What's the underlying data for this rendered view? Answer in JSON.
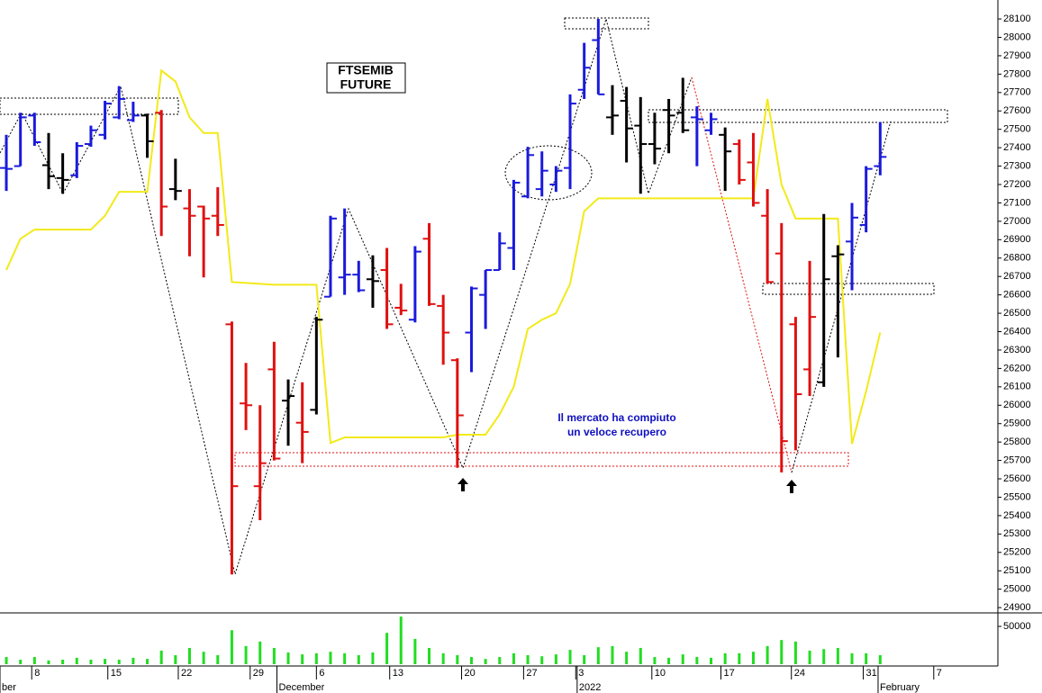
{
  "chart_data": {
    "type": "ohlc",
    "title_lines": [
      "FTSEMIB",
      "FUTURE"
    ],
    "annotation_lines": [
      "Il mercato ha compiuto",
      "un veloce recupero"
    ],
    "xlim": [
      -0.45,
      70.35
    ],
    "xticks": [
      {
        "value": 1.8,
        "label": "8"
      },
      {
        "value": 7.2,
        "label": "15"
      },
      {
        "value": 12.2,
        "label": "22"
      },
      {
        "value": 17.3,
        "label": "29"
      },
      {
        "value": 22.0,
        "label": "6"
      },
      {
        "value": 27.2,
        "label": "13"
      },
      {
        "value": 32.3,
        "label": "20"
      },
      {
        "value": 36.7,
        "label": "27"
      },
      {
        "value": 40.4,
        "label": "3"
      },
      {
        "value": 45.8,
        "label": "10"
      },
      {
        "value": 50.7,
        "label": "17"
      },
      {
        "value": 55.7,
        "label": "24"
      },
      {
        "value": 60.8,
        "label": "31"
      },
      {
        "value": 65.8,
        "label": "7"
      }
    ],
    "month_ticks": [
      {
        "value": -0.45,
        "label": "ber"
      },
      {
        "value": 19.2,
        "label": "December"
      },
      {
        "value": 40.5,
        "label": "2022"
      },
      {
        "value": 61.85,
        "label": "February"
      }
    ],
    "ylim": [
      24876,
      28203
    ],
    "yticks": [
      24900,
      25000,
      25100,
      25200,
      25300,
      25400,
      25500,
      25600,
      25700,
      25800,
      25900,
      26000,
      26100,
      26200,
      26300,
      26400,
      26500,
      26600,
      26700,
      26800,
      26900,
      27000,
      27100,
      27200,
      27300,
      27400,
      27500,
      27600,
      27700,
      27800,
      27900,
      28000,
      28100
    ],
    "open": [
      27290,
      27300,
      27575,
      27305,
      27235,
      27250,
      27420,
      27470,
      27565,
      27550,
      27575,
      27590,
      27175,
      27070,
      27080,
      27030,
      26440,
      26010,
      25560,
      26195,
      26025,
      25905,
      25975,
      26590,
      26695,
      26710,
      26685,
      26735,
      26530,
      26465,
      26905,
      26540,
      26245,
      26395,
      26600,
      26735,
      26855,
      27135,
      27175,
      27200,
      27290,
      27715,
      27985,
      27565,
      27655,
      27520,
      27420,
      27605,
      27590,
      27565,
      27495,
      27470,
      27420,
      27320,
      27030,
      26825,
      26440,
      26195,
      26125,
      26810,
      26890,
      26980,
      27300
    ],
    "high": [
      27470,
      27590,
      27590,
      27480,
      27370,
      27430,
      27520,
      27655,
      27735,
      27650,
      27585,
      27605,
      27340,
      27175,
      27085,
      27185,
      26455,
      26230,
      26000,
      26345,
      26140,
      26125,
      26480,
      27030,
      27070,
      26785,
      26815,
      26855,
      26660,
      26865,
      26990,
      26600,
      26255,
      26645,
      26735,
      26940,
      27225,
      27405,
      27380,
      27300,
      27690,
      27970,
      28100,
      27740,
      27730,
      27675,
      27590,
      27665,
      27780,
      27625,
      27590,
      27510,
      27445,
      27480,
      27175,
      26990,
      26480,
      26785,
      27040,
      26870,
      27100,
      27300,
      27540
    ],
    "low": [
      27165,
      27300,
      27410,
      27175,
      27150,
      27235,
      27405,
      27445,
      27555,
      27540,
      27345,
      26920,
      27115,
      26810,
      26695,
      26920,
      25080,
      25865,
      25375,
      25700,
      25780,
      25685,
      25950,
      26590,
      26600,
      26615,
      26530,
      26415,
      26490,
      26450,
      26540,
      26220,
      25660,
      26180,
      26415,
      26735,
      26735,
      27125,
      27135,
      27160,
      27175,
      27665,
      27690,
      27470,
      27320,
      27150,
      27310,
      27370,
      27480,
      27300,
      27470,
      27165,
      27200,
      27080,
      26660,
      25635,
      25755,
      26050,
      26100,
      26260,
      26625,
      26940,
      27250
    ],
    "close": [
      27285,
      27565,
      27430,
      27245,
      27225,
      27410,
      27495,
      27640,
      27665,
      27575,
      27435,
      27080,
      27165,
      27030,
      27015,
      26980,
      25560,
      26000,
      25685,
      25710,
      26050,
      25855,
      26465,
      27015,
      26710,
      26625,
      26675,
      26440,
      26515,
      26835,
      26550,
      26395,
      25945,
      26635,
      26735,
      26880,
      27210,
      27360,
      27275,
      27275,
      27640,
      27835,
      27690,
      27575,
      27505,
      27420,
      27395,
      27575,
      27495,
      27555,
      27555,
      27380,
      27225,
      27100,
      26670,
      25805,
      26060,
      26480,
      26685,
      26820,
      27020,
      27285,
      27350
    ],
    "colors": [
      "#1a1adc",
      "#1a1adc",
      "#1a1adc",
      "#000000",
      "#000000",
      "#1a1adc",
      "#1a1adc",
      "#1a1adc",
      "#1a1adc",
      "#1a1adc",
      "#000000",
      "#e01010",
      "#000000",
      "#e01010",
      "#e01010",
      "#e01010",
      "#e01010",
      "#e01010",
      "#e01010",
      "#e01010",
      "#000000",
      "#e01010",
      "#000000",
      "#1a1adc",
      "#1a1adc",
      "#1a1adc",
      "#000000",
      "#e01010",
      "#e01010",
      "#1a1adc",
      "#e01010",
      "#e01010",
      "#e01010",
      "#1a1adc",
      "#1a1adc",
      "#1a1adc",
      "#1a1adc",
      "#1a1adc",
      "#1a1adc",
      "#1a1adc",
      "#1a1adc",
      "#1a1adc",
      "#1a1adc",
      "#000000",
      "#000000",
      "#000000",
      "#000000",
      "#000000",
      "#000000",
      "#1a1adc",
      "#1a1adc",
      "#000000",
      "#e01010",
      "#e01010",
      "#e01010",
      "#e01010",
      "#e01010",
      "#e01010",
      "#000000",
      "#000000",
      "#1a1adc",
      "#1a1adc",
      "#1a1adc"
    ],
    "indicator": {
      "color": "#f2ea1a",
      "values": [
        26735,
        26905,
        26955,
        26955,
        26955,
        26955,
        26955,
        27030,
        27160,
        27160,
        27160,
        27820,
        27760,
        27565,
        27480,
        27480,
        26670,
        26665,
        26660,
        26655,
        26655,
        26655,
        26655,
        25795,
        25825,
        25825,
        25825,
        25825,
        25825,
        25825,
        25825,
        25825,
        25840,
        25840,
        25840,
        25950,
        26100,
        26415,
        26465,
        26500,
        26660,
        27055,
        27125,
        27125,
        27125,
        27125,
        27125,
        27125,
        27125,
        27125,
        27125,
        27125,
        27125,
        27125,
        27665,
        27200,
        27015,
        27015,
        27015,
        27015,
        25790,
        26075,
        26395
      ]
    },
    "volume": {
      "color": "#22dd22",
      "ylim": [
        0,
        65500
      ],
      "yticks": [
        50000
      ],
      "values": [
        9500,
        6000,
        9500,
        5000,
        6000,
        8500,
        6000,
        7000,
        6000,
        8500,
        7000,
        18000,
        12000,
        21500,
        16500,
        12000,
        45000,
        24000,
        30000,
        21500,
        15500,
        13000,
        14500,
        16500,
        14500,
        12000,
        15500,
        41500,
        63000,
        33500,
        21500,
        14500,
        12000,
        9500,
        7000,
        9500,
        14500,
        12000,
        10500,
        13000,
        19000,
        12000,
        22500,
        24000,
        16500,
        21500,
        9500,
        8500,
        13000,
        9500,
        8500,
        14500,
        14500,
        16500,
        24000,
        32000,
        30000,
        18000,
        20000,
        21500,
        14500,
        14500,
        12000
      ]
    }
  }
}
